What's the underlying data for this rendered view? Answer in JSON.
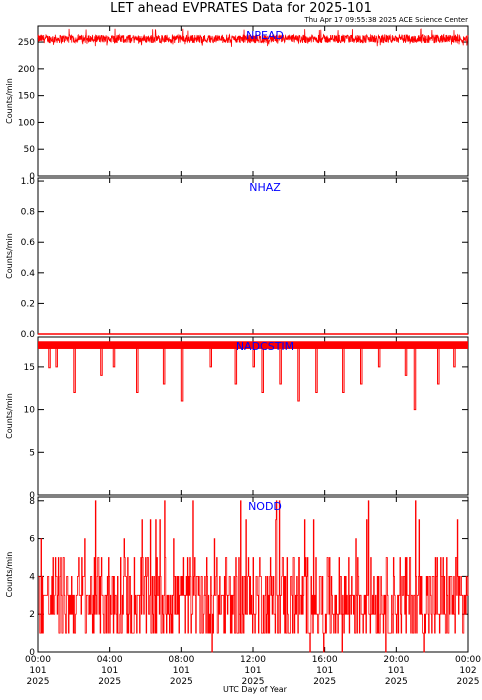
{
  "title": "LET ahead EVPRATES Data for 2025-101",
  "timestamp": "Thu Apr 17 09:55:38 2025 ACE Science Center",
  "colors": {
    "data": "#ff0000",
    "panel_label": "#0000ff",
    "axes": "#000000"
  },
  "x_axis": {
    "label": "UTC Day of Year",
    "ticks": [
      {
        "hour": 0,
        "time": "00:00",
        "doy": "101",
        "year": "2025"
      },
      {
        "hour": 4,
        "time": "04:00",
        "doy": "101",
        "year": "2025"
      },
      {
        "hour": 8,
        "time": "08:00",
        "doy": "101",
        "year": "2025"
      },
      {
        "hour": 12,
        "time": "12:00",
        "doy": "101",
        "year": "2025"
      },
      {
        "hour": 16,
        "time": "16:00",
        "doy": "101",
        "year": "2025"
      },
      {
        "hour": 20,
        "time": "20:00",
        "doy": "101",
        "year": "2025"
      },
      {
        "hour": 24,
        "time": "00:00",
        "doy": "102",
        "year": "2025"
      }
    ]
  },
  "chart_data": [
    {
      "type": "line",
      "label": "NPEAD",
      "ylabel": "Counts/min",
      "ylim": [
        0,
        280
      ],
      "yticks": [
        0,
        50,
        100,
        150,
        200,
        250
      ],
      "x_range_hours": [
        0,
        24
      ],
      "series": [
        {
          "pattern": "noisy",
          "mean": 256,
          "min": 240,
          "max": 275
        }
      ]
    },
    {
      "type": "line",
      "label": "NHAZ",
      "ylabel": "Counts/min",
      "ylim": [
        0,
        1.02
      ],
      "yticks": [
        0.0,
        0.2,
        0.4,
        0.6,
        0.8,
        1.0
      ],
      "x_range_hours": [
        0,
        24
      ],
      "series": [
        {
          "pattern": "constant",
          "value": 0
        }
      ]
    },
    {
      "type": "line",
      "label": "NADCSTIM",
      "ylabel": "Counts/min",
      "ylim": [
        0,
        18.5
      ],
      "yticks": [
        0,
        5,
        10,
        15
      ],
      "x_range_hours": [
        0,
        24
      ],
      "series": [
        {
          "pattern": "flat_with_dips",
          "base": 17.6,
          "band": [
            17.1,
            18.0
          ],
          "dips": [
            {
              "hour": 0.6,
              "value": 14.9
            },
            {
              "hour": 1.0,
              "value": 15.0
            },
            {
              "hour": 2.0,
              "value": 12.0
            },
            {
              "hour": 3.5,
              "value": 14.0
            },
            {
              "hour": 4.2,
              "value": 15.0
            },
            {
              "hour": 5.5,
              "value": 12.0
            },
            {
              "hour": 7.0,
              "value": 13.0
            },
            {
              "hour": 8.0,
              "value": 11.0
            },
            {
              "hour": 9.6,
              "value": 15.0
            },
            {
              "hour": 11.0,
              "value": 13.0
            },
            {
              "hour": 12.0,
              "value": 15.0
            },
            {
              "hour": 12.5,
              "value": 12.0
            },
            {
              "hour": 13.5,
              "value": 13.0
            },
            {
              "hour": 14.5,
              "value": 11.0
            },
            {
              "hour": 15.5,
              "value": 12.0
            },
            {
              "hour": 17.0,
              "value": 12.0
            },
            {
              "hour": 18.0,
              "value": 13.0
            },
            {
              "hour": 19.0,
              "value": 15.0
            },
            {
              "hour": 20.5,
              "value": 14.0
            },
            {
              "hour": 21.0,
              "value": 10.0
            },
            {
              "hour": 22.3,
              "value": 13.0
            },
            {
              "hour": 23.2,
              "value": 15.0
            }
          ]
        }
      ]
    },
    {
      "type": "line",
      "label": "NODD",
      "ylabel": "Counts/min",
      "ylim": [
        0,
        8.2
      ],
      "yticks": [
        0,
        2,
        4,
        6,
        8
      ],
      "x_range_hours": [
        0,
        24
      ],
      "series": [
        {
          "pattern": "noisy_integer",
          "min": 0,
          "max": 8,
          "mean": 2.5
        }
      ]
    }
  ]
}
